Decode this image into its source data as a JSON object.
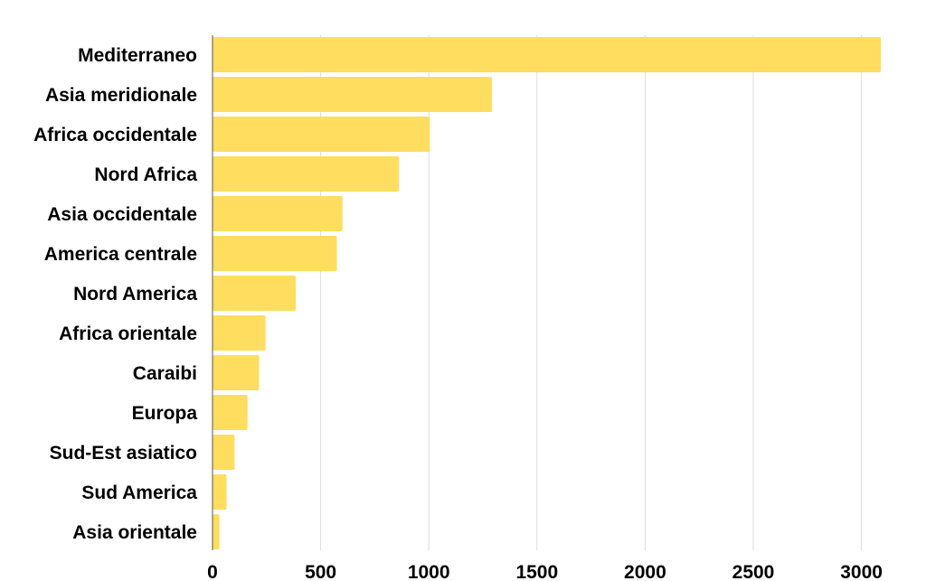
{
  "colors": {
    "bar": "#FFDD5E",
    "grid": "#DDDDDD",
    "axis": "#555555",
    "text": "#000000",
    "background": "#FFFFFF"
  },
  "chart_data": {
    "type": "bar",
    "orientation": "horizontal",
    "title": "",
    "xlabel": "",
    "ylabel": "",
    "categories": [
      "Mediterraneo",
      "Asia meridionale",
      "Africa occidentale",
      "Nord Africa",
      "Asia occidentale",
      "America centrale",
      "Nord America",
      "Africa orientale",
      "Caraibi",
      "Europa",
      "Sud-Est asiatico",
      "Sud America",
      "Asia orientale"
    ],
    "values": [
      3090,
      1292,
      1005,
      862,
      601,
      575,
      385,
      245,
      215,
      162,
      102,
      65,
      32
    ],
    "xlim": [
      0,
      3200
    ],
    "xticks": [
      0,
      500,
      1000,
      1500,
      2000,
      2500,
      3000
    ],
    "xtick_labels": [
      "0",
      "500",
      "1000",
      "1500",
      "2000",
      "2500",
      "3000"
    ],
    "grid": "vertical",
    "legend": "none"
  }
}
